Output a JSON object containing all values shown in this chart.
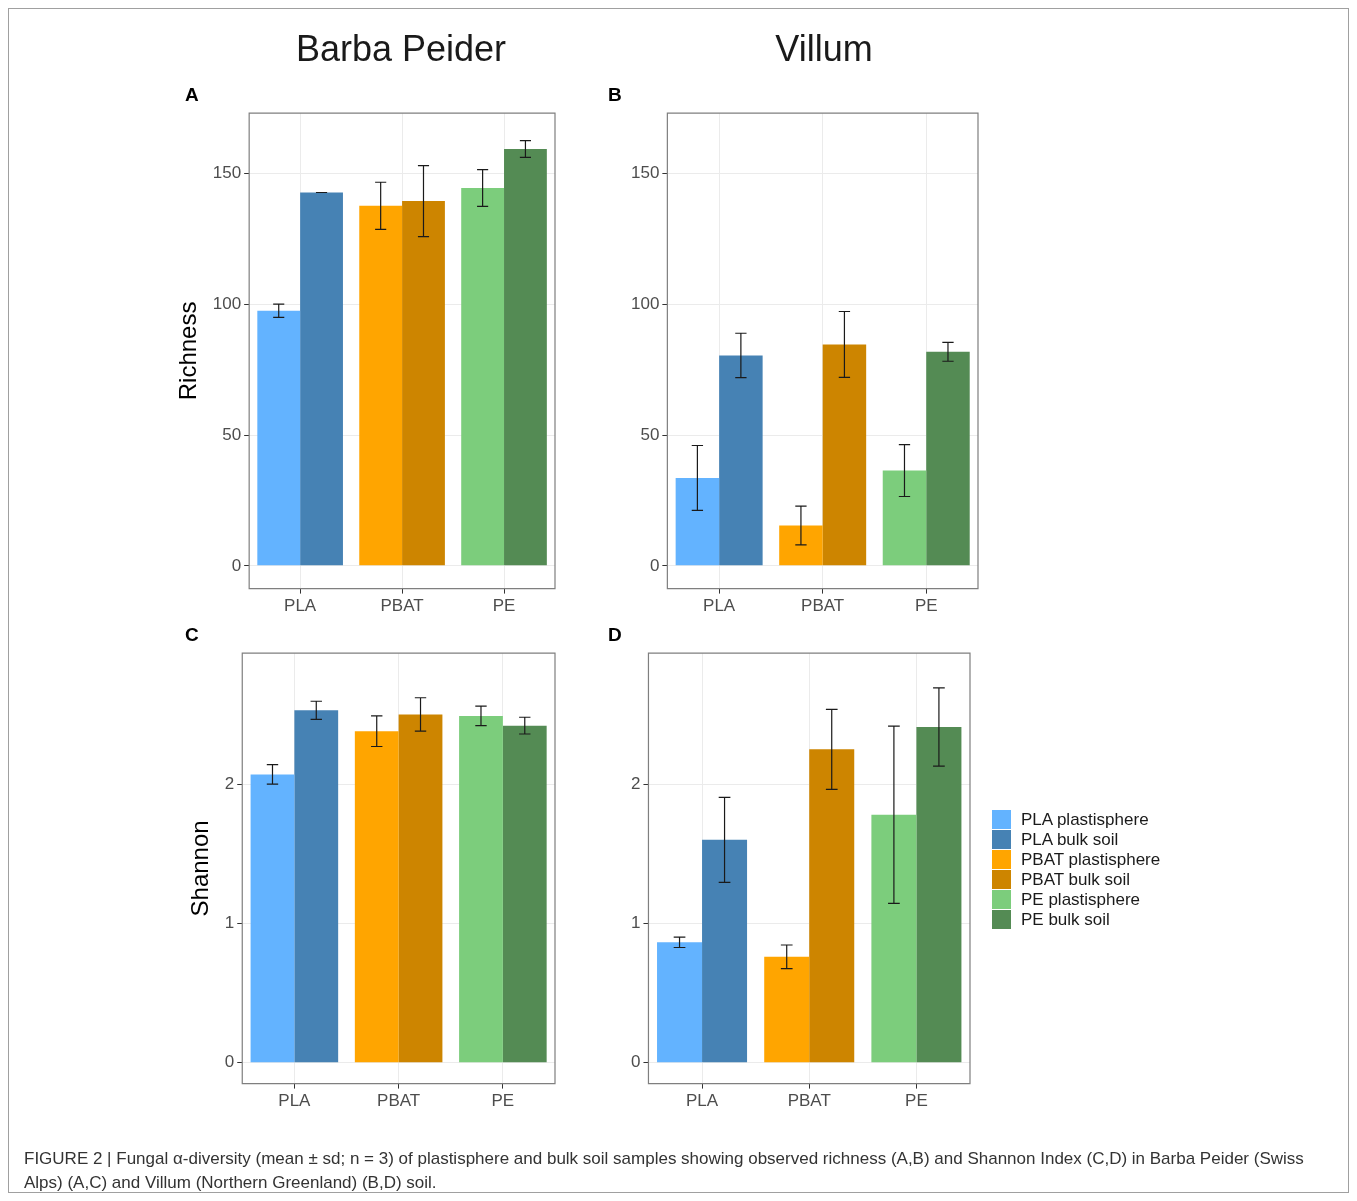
{
  "chart_data": [
    {
      "type": "bar",
      "title": "Barba Peider",
      "ylabel": "Richness",
      "annotations": [
        "A"
      ],
      "categories": [
        "PLA",
        "PBAT",
        "PE"
      ],
      "ylim": [
        -8.7,
        173
      ],
      "yticks": [
        0,
        50,
        100,
        150
      ],
      "grid": true,
      "series": [
        {
          "color": "#63b3ff",
          "values": [
            97.5,
            null,
            null
          ],
          "errors": [
            2.5,
            null,
            null
          ]
        },
        {
          "color": "#4682b4",
          "values": [
            142.7,
            null,
            null
          ],
          "errors": [
            0,
            null,
            null
          ]
        },
        {
          "color": "#ffa500",
          "values": [
            null,
            137.6,
            null
          ],
          "errors": [
            null,
            9,
            null
          ]
        },
        {
          "color": "#cd8500",
          "values": [
            null,
            139.4,
            null
          ],
          "errors": [
            null,
            13.6,
            null
          ]
        },
        {
          "color": "#7ccd7c",
          "values": [
            null,
            null,
            144.4
          ],
          "errors": [
            null,
            null,
            7
          ]
        },
        {
          "color": "#548b54",
          "values": [
            null,
            null,
            159.3
          ],
          "errors": [
            null,
            null,
            3.2
          ]
        }
      ]
    },
    {
      "type": "bar",
      "title": "Villum",
      "annotations": [
        "B"
      ],
      "categories": [
        "PLA",
        "PBAT",
        "PE"
      ],
      "ylim": [
        -8.7,
        173
      ],
      "yticks": [
        0,
        50,
        100,
        150
      ],
      "grid": true,
      "series": [
        {
          "color": "#63b3ff",
          "values": [
            33.6,
            null,
            null
          ],
          "errors": [
            12.4,
            null,
            null
          ]
        },
        {
          "color": "#4682b4",
          "values": [
            80.4,
            null,
            null
          ],
          "errors": [
            8.5,
            null,
            null
          ]
        },
        {
          "color": "#ffa500",
          "values": [
            null,
            15.4,
            null
          ],
          "errors": [
            null,
            7.4,
            null
          ]
        },
        {
          "color": "#cd8500",
          "values": [
            null,
            84.6,
            null
          ],
          "errors": [
            null,
            12.6,
            null
          ]
        },
        {
          "color": "#7ccd7c",
          "values": [
            null,
            null,
            36.4
          ],
          "errors": [
            null,
            null,
            9.9
          ]
        },
        {
          "color": "#548b54",
          "values": [
            null,
            null,
            81.8
          ],
          "errors": [
            null,
            null,
            3.6
          ]
        }
      ]
    },
    {
      "type": "bar",
      "ylabel": "Shannon",
      "annotations": [
        "C"
      ],
      "categories": [
        "PLA",
        "PBAT",
        "PE"
      ],
      "ylim": [
        -0.15,
        2.94
      ],
      "yticks": [
        0,
        1,
        2
      ],
      "grid": true,
      "series": [
        {
          "color": "#63b3ff",
          "values": [
            2.07,
            null,
            null
          ],
          "errors": [
            0.07,
            null,
            null
          ]
        },
        {
          "color": "#4682b4",
          "values": [
            2.53,
            null,
            null
          ],
          "errors": [
            0.065,
            null,
            null
          ]
        },
        {
          "color": "#ffa500",
          "values": [
            null,
            2.38,
            null
          ],
          "errors": [
            null,
            0.11,
            null
          ]
        },
        {
          "color": "#cd8500",
          "values": [
            null,
            2.5,
            null
          ],
          "errors": [
            null,
            0.12,
            null
          ]
        },
        {
          "color": "#7ccd7c",
          "values": [
            null,
            null,
            2.49
          ],
          "errors": [
            null,
            null,
            0.07
          ]
        },
        {
          "color": "#548b54",
          "values": [
            null,
            null,
            2.42
          ],
          "errors": [
            null,
            null,
            0.06
          ]
        }
      ]
    },
    {
      "type": "bar",
      "annotations": [
        "D",
        "FIGURE 2 | Fungal α-diversity (mean ± sd; n = 3) of plastisphere and bulk soil samples showing observed richness (A,B) and Shannon Index (C,D) in Barba Peider (Swiss Alps) (A,C) and Villum (Northern Greenland) (B,D) soil."
      ],
      "categories": [
        "PLA",
        "PBAT",
        "PE"
      ],
      "ylim": [
        -0.15,
        2.94
      ],
      "yticks": [
        0,
        1,
        2
      ],
      "grid": true,
      "legend": "right",
      "series": [
        {
          "name": "PLA plastisphere",
          "color": "#63b3ff",
          "values": [
            0.864,
            null,
            null
          ],
          "errors": [
            0.037,
            null,
            null
          ]
        },
        {
          "name": "PLA bulk soil",
          "color": "#4682b4",
          "values": [
            1.6,
            null,
            null
          ],
          "errors": [
            0.305,
            null,
            null
          ]
        },
        {
          "name": "PBAT plastisphere",
          "color": "#ffa500",
          "values": [
            null,
            0.76,
            null
          ],
          "errors": [
            null,
            0.085,
            null
          ]
        },
        {
          "name": "PBAT bulk soil",
          "color": "#cd8500",
          "values": [
            null,
            2.25,
            null
          ],
          "errors": [
            null,
            0.287,
            null
          ]
        },
        {
          "name": "PE plastisphere",
          "color": "#7ccd7c",
          "values": [
            null,
            null,
            1.78
          ],
          "errors": [
            null,
            null,
            0.636
          ]
        },
        {
          "name": "PE bulk soil",
          "color": "#548b54",
          "values": [
            null,
            null,
            2.41
          ],
          "errors": [
            null,
            null,
            0.281
          ]
        }
      ]
    }
  ]
}
